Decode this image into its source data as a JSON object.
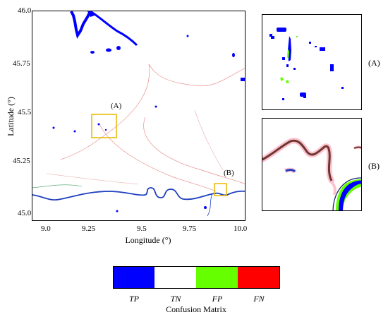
{
  "map": {
    "y_label": "Latitude (°)",
    "x_label": "Longitude (°)",
    "y_ticks": [
      "46.0",
      "45.75",
      "45.5",
      "45.25",
      "45.0"
    ],
    "x_ticks": [
      "9.0",
      "9.25",
      "9.5",
      "9.75",
      "10.0"
    ],
    "region_a_label": "(A)",
    "region_b_label": "(B)"
  },
  "insets": {
    "a_label": "(A)",
    "b_label": "(B)"
  },
  "legend": {
    "title": "Confusion Matrix",
    "items": [
      {
        "label": "TP",
        "color": "#0000ff"
      },
      {
        "label": "TN",
        "color": "#ffffff"
      },
      {
        "label": "FP",
        "color": "#66ff00"
      },
      {
        "label": "FN",
        "color": "#ff0000"
      }
    ]
  },
  "colors": {
    "box": "#e8b800",
    "river": "#1f3fbf",
    "road": "#e89090"
  }
}
